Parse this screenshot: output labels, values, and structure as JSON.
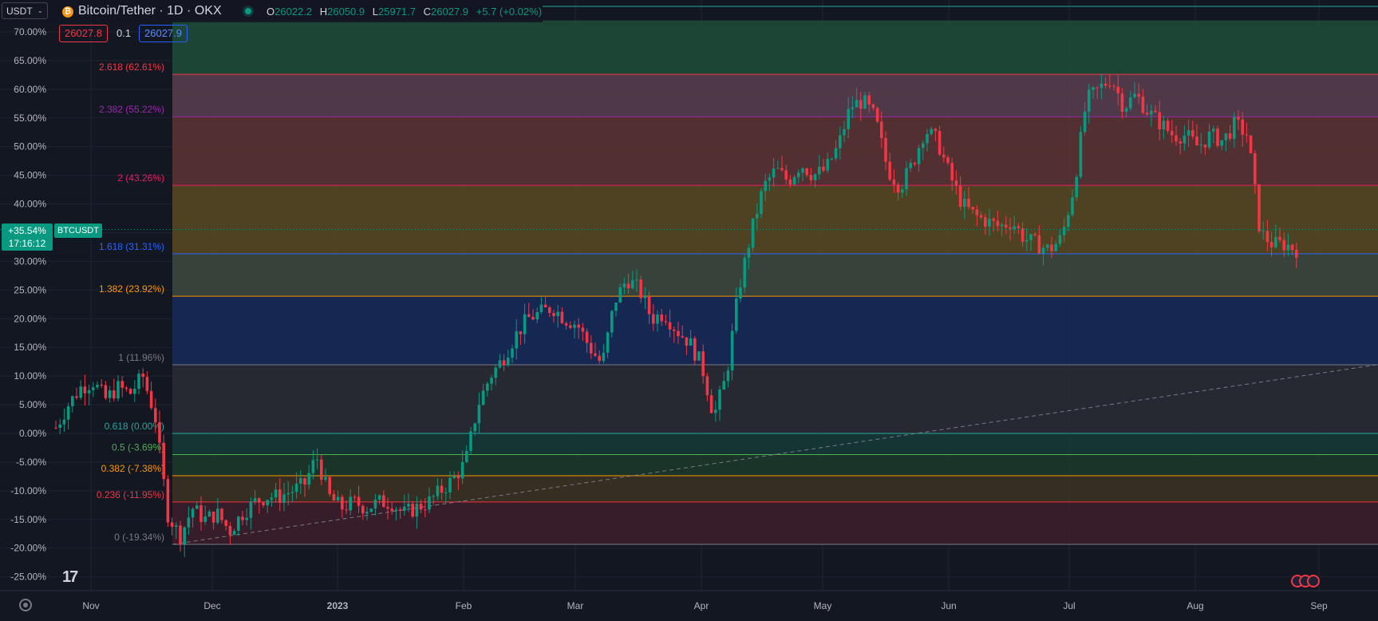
{
  "header": {
    "currency": "USDT",
    "symbol_title": "Bitcoin/Tether · 1D · OKX",
    "ohlc": [
      {
        "key": "O",
        "value": "26022.2"
      },
      {
        "key": "H",
        "value": "26050.9"
      },
      {
        "key": "L",
        "value": "25971.7"
      },
      {
        "key": "C",
        "value": "26027.9"
      }
    ],
    "change": "+5.7 (+0.02%)",
    "sell_price": "26027.8",
    "spread": "0.1",
    "buy_price": "26027.9"
  },
  "last_price": {
    "percent": "+35.54%",
    "countdown": "17:16:12",
    "symbol": "BTCUSDT"
  },
  "colors": {
    "background": "#131722",
    "up": "#089981",
    "down": "#f23645",
    "grid": "#1f2431"
  },
  "chart_data": {
    "type": "candlestick",
    "y_unit": "percent change",
    "ylim": [
      -27,
      72
    ],
    "y_ticks": [
      "70.00%",
      "65.00%",
      "60.00%",
      "55.00%",
      "50.00%",
      "45.00%",
      "40.00%",
      "35.00%",
      "30.00%",
      "25.00%",
      "20.00%",
      "15.00%",
      "10.00%",
      "5.00%",
      "0.00%",
      "-5.00%",
      "-10.00%",
      "-15.00%",
      "-20.00%",
      "-25.00%"
    ],
    "x_ticks": [
      "Nov",
      "Dec",
      "2023",
      "Feb",
      "Mar",
      "Apr",
      "May",
      "Jun",
      "Jul",
      "Aug",
      "Sep"
    ],
    "grid": true,
    "fib_levels": [
      {
        "label": "2.618 (62.61%)",
        "value": 62.61,
        "color": "#f23645"
      },
      {
        "label": "2.382 (55.22%)",
        "value": 55.22,
        "color": "#9c27b0"
      },
      {
        "label": "2 (43.26%)",
        "value": 43.26,
        "color": "#e91e63"
      },
      {
        "label": "1.618 (31.31%)",
        "value": 31.31,
        "color": "#2962ff"
      },
      {
        "label": "1.382 (23.92%)",
        "value": 23.92,
        "color": "#ff9800"
      },
      {
        "label": "1 (11.96%)",
        "value": 11.96,
        "color": "#787b86"
      },
      {
        "label": "0.618 (0.00%)",
        "value": 0.0,
        "color": "#26a69a"
      },
      {
        "label": "0.5 (-3.69%)",
        "value": -3.69,
        "color": "#4caf50"
      },
      {
        "label": "0.382 (-7.38%)",
        "value": -7.38,
        "color": "#ff9800"
      },
      {
        "label": "0.236 (-11.95%)",
        "value": -11.95,
        "color": "#f23645"
      },
      {
        "label": "0 (-19.34%)",
        "value": -19.34,
        "color": "#787b86"
      }
    ],
    "fib_bands": [
      {
        "from": 62.61,
        "to": 72,
        "color": "#1e4d3a"
      },
      {
        "from": 55.22,
        "to": 62.61,
        "color": "#5a3f4f"
      },
      {
        "from": 43.26,
        "to": 55.22,
        "color": "#5e3433"
      },
      {
        "from": 31.31,
        "to": 43.26,
        "color": "#5a4a23"
      },
      {
        "from": 23.92,
        "to": 31.31,
        "color": "#3e4a3e"
      },
      {
        "from": 11.96,
        "to": 23.92,
        "color": "#182a5a"
      },
      {
        "from": 0.0,
        "to": 11.96,
        "color": "#2a2d35"
      },
      {
        "from": -3.69,
        "to": 0.0,
        "color": "#163a37"
      },
      {
        "from": -7.38,
        "to": -3.69,
        "color": "#1c3a2a"
      },
      {
        "from": -11.95,
        "to": -7.38,
        "color": "#3d3322"
      },
      {
        "from": -19.34,
        "to": -11.95,
        "color": "#3e1f2b"
      }
    ],
    "trend_line": {
      "from_y": -19.34,
      "to_y": 12.0
    },
    "path_closes": [
      1,
      5,
      8,
      9,
      6,
      8,
      7,
      10,
      3,
      -14,
      -18,
      -13,
      -15,
      -14,
      -17,
      -14,
      -12,
      -11,
      -11,
      -10,
      -9,
      -4,
      -11,
      -13,
      -12,
      -13,
      -12,
      -12,
      -14,
      -13,
      -12,
      -10,
      -8,
      -5,
      5,
      10,
      13,
      17,
      20,
      21,
      22,
      20,
      19,
      15,
      12,
      23,
      27,
      25,
      20,
      21,
      18,
      16,
      12,
      3,
      10,
      25,
      35,
      43,
      46,
      44,
      47,
      45,
      46,
      50,
      57,
      58,
      55,
      46,
      43,
      47,
      53,
      51,
      45,
      40,
      38,
      37,
      36,
      37,
      34,
      33,
      32,
      34,
      43,
      58,
      60,
      62,
      57,
      59,
      56,
      54,
      52,
      52,
      50,
      52,
      51,
      54,
      52,
      35,
      33,
      33,
      32
    ],
    "last_value": 35.54
  }
}
